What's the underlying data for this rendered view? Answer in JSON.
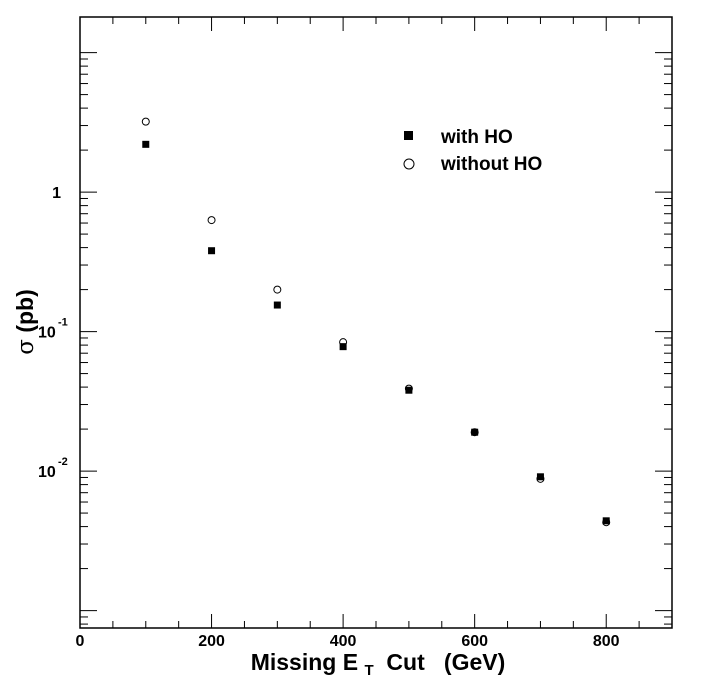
{
  "chart_data": {
    "type": "scatter",
    "title": "",
    "xlabel": {
      "main": "Missing E",
      "sub": "T",
      "rest": " Cut   (GeV)"
    },
    "ylabel": {
      "symbol": "σ",
      "unit": "(pb)"
    },
    "x_scale": "linear",
    "y_scale": "log",
    "xlim": [
      0,
      900
    ],
    "ylim": [
      0.00075,
      18
    ],
    "x_ticks": [
      0,
      200,
      400,
      600,
      800
    ],
    "x_tick_labels": [
      "0",
      "200",
      "400",
      "600",
      "800"
    ],
    "y_ticks": [
      {
        "value": 1,
        "base": "1",
        "exp": ""
      },
      {
        "value": 0.1,
        "base": "10",
        "exp": "-1"
      },
      {
        "value": 0.01,
        "base": "10",
        "exp": "-2"
      }
    ],
    "grid": false,
    "legend_position": "top-right",
    "series": [
      {
        "name": "with HO",
        "marker": "filled-square",
        "x": [
          100,
          200,
          300,
          400,
          500,
          600,
          700,
          800
        ],
        "values": [
          2.2,
          0.38,
          0.155,
          0.078,
          0.038,
          0.019,
          0.0091,
          0.0044
        ]
      },
      {
        "name": "without HO",
        "marker": "open-circle",
        "x": [
          100,
          200,
          300,
          400,
          500,
          600,
          700,
          800
        ],
        "values": [
          3.2,
          0.63,
          0.2,
          0.084,
          0.039,
          0.019,
          0.0088,
          0.0043
        ]
      }
    ]
  }
}
